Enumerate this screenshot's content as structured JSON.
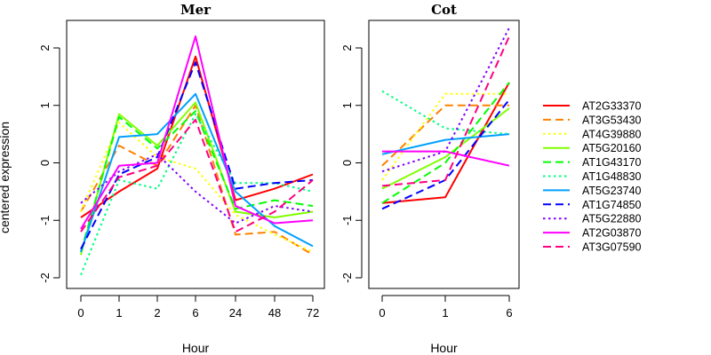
{
  "chart_data": [
    {
      "type": "line",
      "title": "Mer",
      "xlabel": "Hour",
      "ylabel": "centered expression",
      "categories": [
        "0",
        "1",
        "2",
        "6",
        "24",
        "48",
        "72"
      ],
      "ylim": [
        -2.1,
        2.5
      ],
      "yticks": [
        "-2",
        "-1",
        "0",
        "1",
        "2"
      ],
      "grid": false,
      "series": [
        {
          "name": "AT2G33370",
          "color": "#ff0000",
          "dash": "solid",
          "values": [
            -0.95,
            -0.5,
            -0.1,
            1.85,
            -0.65,
            -0.45,
            -0.2
          ]
        },
        {
          "name": "AT3G53430",
          "color": "#ff8000",
          "dash": "longdash",
          "values": [
            -0.85,
            0.3,
            -0.05,
            1.0,
            -1.25,
            -1.2,
            -1.6
          ]
        },
        {
          "name": "AT4G39880",
          "color": "#ffff00",
          "dash": "dotted",
          "values": [
            -0.85,
            0.7,
            0.1,
            -0.1,
            -0.9,
            -1.25,
            -1.55
          ]
        },
        {
          "name": "AT5G20160",
          "color": "#80ff00",
          "dash": "solid",
          "values": [
            -1.6,
            0.85,
            0.3,
            1.05,
            -0.85,
            -0.95,
            -0.85
          ]
        },
        {
          "name": "AT1G43170",
          "color": "#00ff00",
          "dash": "longdash",
          "values": [
            -1.55,
            0.8,
            0.25,
            0.9,
            -0.8,
            -0.65,
            -0.75
          ]
        },
        {
          "name": "AT1G48830",
          "color": "#00ff80",
          "dash": "dotted",
          "values": [
            -1.95,
            -0.3,
            -0.45,
            0.85,
            -0.35,
            -0.35,
            -0.5
          ]
        },
        {
          "name": "AT5G23740",
          "color": "#00a0ff",
          "dash": "solid",
          "values": [
            -1.55,
            0.45,
            0.5,
            1.2,
            -0.5,
            -1.1,
            -1.45
          ]
        },
        {
          "name": "AT1G74850",
          "color": "#0000ff",
          "dash": "longdash",
          "values": [
            -1.5,
            -0.2,
            0.1,
            1.75,
            -0.45,
            -0.35,
            -0.3
          ]
        },
        {
          "name": "AT5G22880",
          "color": "#8000ff",
          "dash": "dotted",
          "values": [
            -0.7,
            -0.15,
            0.15,
            -0.5,
            -1.05,
            -0.75,
            -0.85
          ]
        },
        {
          "name": "AT2G03870",
          "color": "#ff00ff",
          "dash": "solid",
          "values": [
            -1.15,
            -0.05,
            0.0,
            2.2,
            -0.75,
            -1.05,
            -1.0
          ]
        },
        {
          "name": "AT3G07590",
          "color": "#ff0080",
          "dash": "longdash",
          "values": [
            -1.2,
            -0.25,
            -0.05,
            0.75,
            -1.2,
            -0.85,
            -0.3
          ]
        }
      ]
    },
    {
      "type": "line",
      "title": "Cot",
      "xlabel": "Hour",
      "categories": [
        "0",
        "1",
        "6"
      ],
      "ylim": [
        -2.1,
        2.5
      ],
      "yticks": [
        "-2",
        "-1",
        "0",
        "1",
        "2"
      ],
      "grid": false,
      "series": [
        {
          "name": "AT2G33370",
          "color": "#ff0000",
          "dash": "solid",
          "values": [
            -0.7,
            -0.6,
            1.4
          ]
        },
        {
          "name": "AT3G53430",
          "color": "#ff8000",
          "dash": "longdash",
          "values": [
            -0.05,
            1.0,
            1.0
          ]
        },
        {
          "name": "AT4G39880",
          "color": "#ffff00",
          "dash": "dotted",
          "values": [
            -0.3,
            1.2,
            1.2
          ]
        },
        {
          "name": "AT5G20160",
          "color": "#80ff00",
          "dash": "solid",
          "values": [
            -0.45,
            0.1,
            0.95
          ]
        },
        {
          "name": "AT1G43170",
          "color": "#00ff00",
          "dash": "longdash",
          "values": [
            -0.7,
            0.0,
            1.4
          ]
        },
        {
          "name": "AT1G48830",
          "color": "#00ff80",
          "dash": "dotted",
          "values": [
            1.25,
            0.6,
            0.5
          ]
        },
        {
          "name": "AT5G23740",
          "color": "#00a0ff",
          "dash": "solid",
          "values": [
            0.15,
            0.4,
            0.5
          ]
        },
        {
          "name": "AT1G74850",
          "color": "#0000ff",
          "dash": "longdash",
          "values": [
            -0.8,
            -0.3,
            1.1
          ]
        },
        {
          "name": "AT5G22880",
          "color": "#8000ff",
          "dash": "dotted",
          "values": [
            -0.15,
            0.2,
            2.35
          ]
        },
        {
          "name": "AT2G03870",
          "color": "#ff00ff",
          "dash": "solid",
          "values": [
            0.2,
            0.2,
            -0.05
          ]
        },
        {
          "name": "AT3G07590",
          "color": "#ff0080",
          "dash": "longdash",
          "values": [
            -0.4,
            -0.3,
            2.2
          ]
        }
      ]
    }
  ],
  "legend": {
    "placement": "right",
    "entries": [
      "AT2G33370",
      "AT3G53430",
      "AT4G39880",
      "AT5G20160",
      "AT1G43170",
      "AT1G48830",
      "AT5G23740",
      "AT1G74850",
      "AT5G22880",
      "AT2G03870",
      "AT3G07590"
    ]
  }
}
